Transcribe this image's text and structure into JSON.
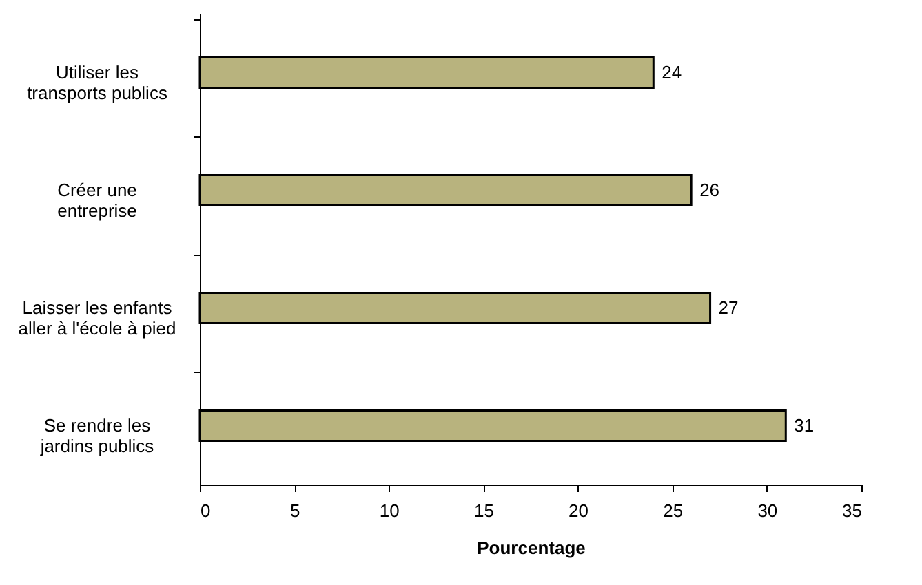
{
  "chart_data": {
    "type": "bar",
    "orientation": "horizontal",
    "xlabel": "Pourcentage",
    "categories": [
      "Utiliser les\ntransports publics",
      "Créer une\nentreprise",
      "Laisser les enfants\naller à l'école à pied",
      "Se rendre les\njardins publics"
    ],
    "values": [
      24,
      26,
      27,
      31
    ],
    "color": "#b8b37e",
    "data_labels": true,
    "grid": false,
    "xlim": [
      0,
      35
    ],
    "xticks": [
      0,
      5,
      10,
      15,
      20,
      25,
      30,
      35
    ]
  }
}
